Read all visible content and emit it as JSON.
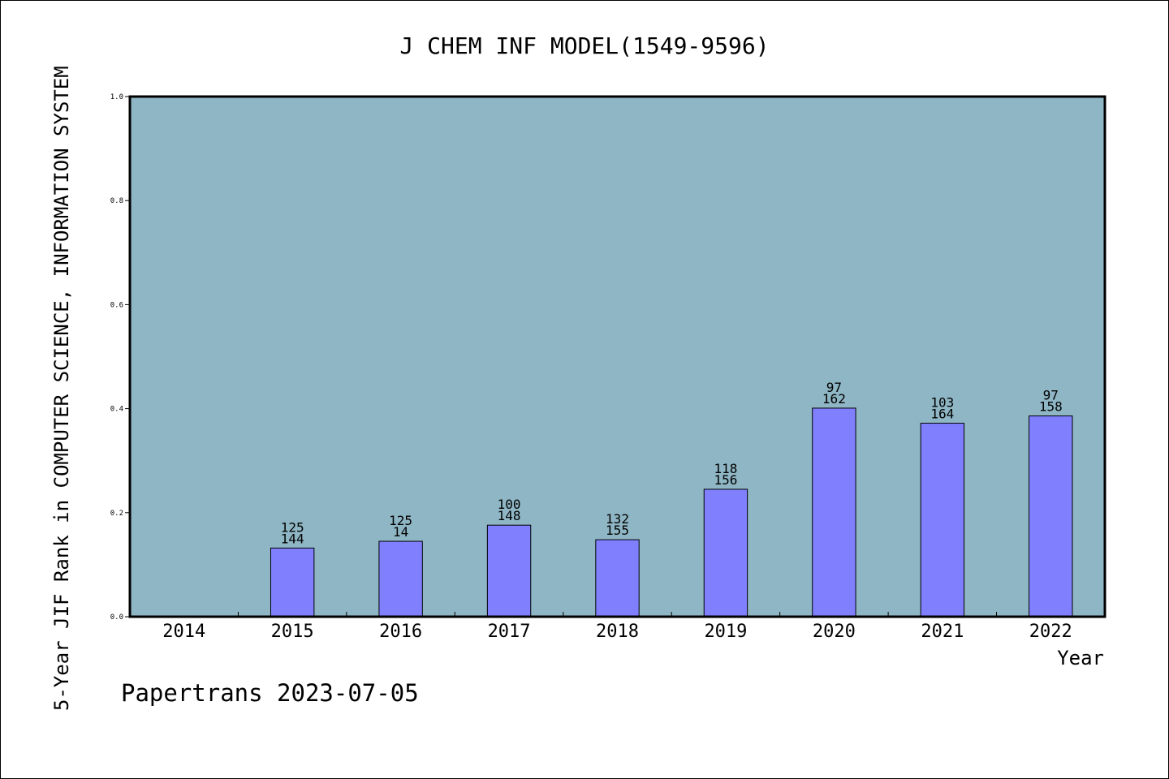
{
  "chart_data": {
    "type": "bar",
    "title": "J CHEM INF MODEL(1549-9596)",
    "xlabel": "Year",
    "ylabel": "5-Year JIF Rank in COMPUTER SCIENCE, INFORMATION SYSTEM",
    "ylim": [
      0,
      1.0
    ],
    "yticks": [
      "0.0",
      "0.2",
      "0.4",
      "0.6",
      "0.8",
      "1.0"
    ],
    "categories": [
      "2014",
      "2015",
      "2016",
      "2017",
      "2018",
      "2019",
      "2020",
      "2021",
      "2022"
    ],
    "values": [
      0,
      0.132,
      0.145,
      0.176,
      0.148,
      0.245,
      0.401,
      0.372,
      0.386
    ],
    "rank_labels": [
      "",
      "125",
      "125",
      "100",
      "132",
      "118",
      "97",
      "103",
      "97"
    ],
    "total_labels": [
      "",
      "144",
      "14",
      "148",
      "155",
      "156",
      "162",
      "164",
      "158"
    ],
    "colors": {
      "plot_background": "#8fb6c4",
      "bar": "#8080ff"
    },
    "grid": false
  },
  "footer": "Papertrans 2023-07-05"
}
